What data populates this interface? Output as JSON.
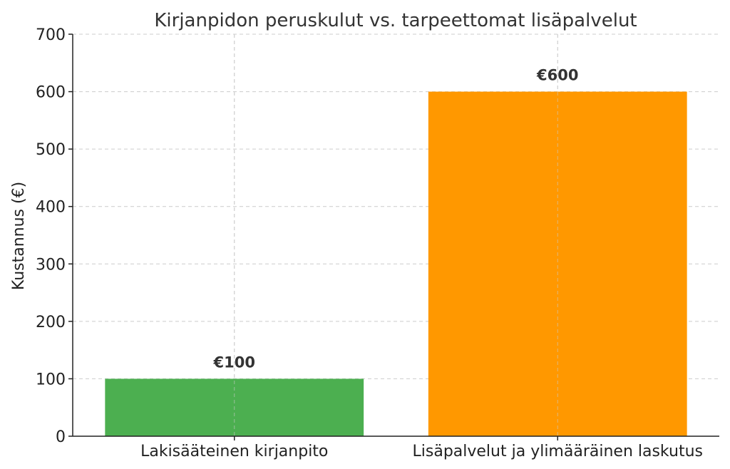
{
  "chart_data": {
    "type": "bar",
    "title": "Kirjanpidon peruskulut vs. tarpeettomat lisäpalvelut",
    "xlabel": "",
    "ylabel": "Kustannus (€)",
    "categories": [
      "Lakisääteinen kirjanpito",
      "Lisäpalvelut ja ylimääräinen laskutus"
    ],
    "values": [
      100,
      600
    ],
    "data_labels": [
      "€100",
      "€600"
    ],
    "colors": [
      "#4caf50",
      "#ff9800"
    ],
    "ylim": [
      0,
      700
    ],
    "yticks": [
      0,
      100,
      200,
      300,
      400,
      500,
      600,
      700
    ],
    "ytick_labels": [
      "0",
      "100",
      "200",
      "300",
      "400",
      "500",
      "600",
      "700"
    ],
    "grid": true
  }
}
